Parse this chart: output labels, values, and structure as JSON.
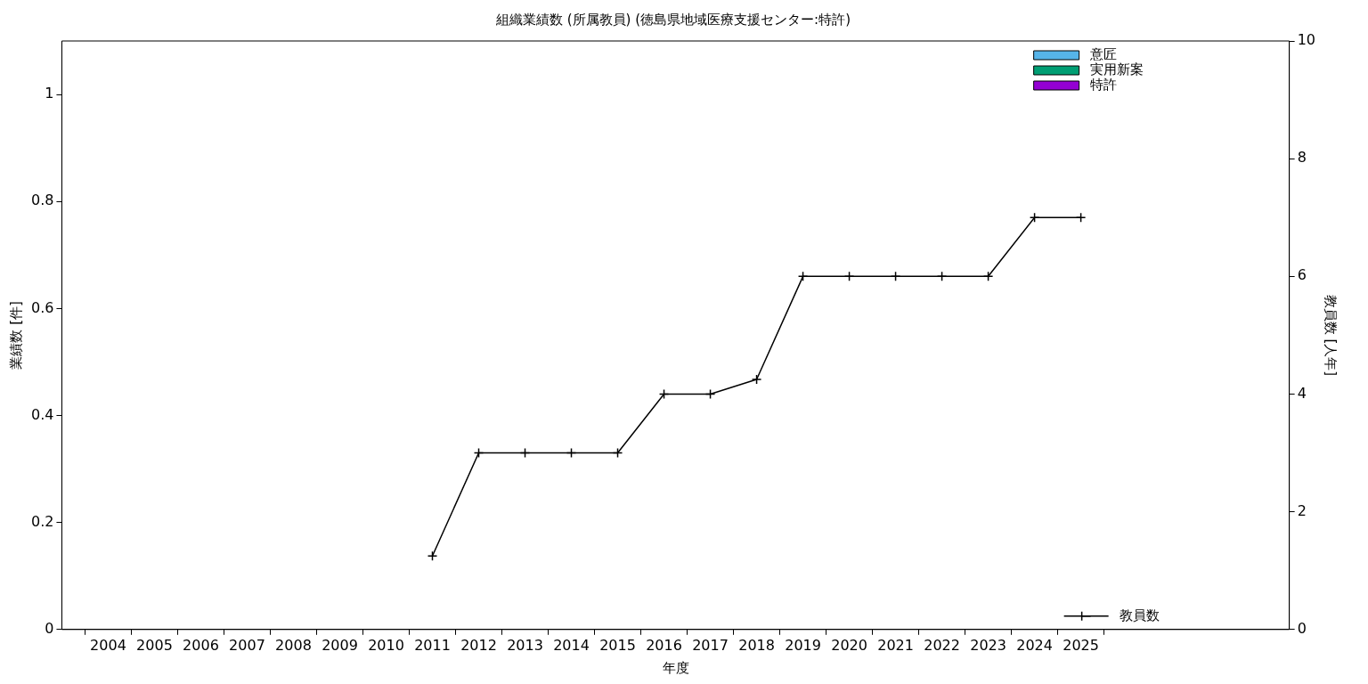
{
  "chart_data": {
    "type": "bar",
    "title": "組織業績数 (所属教員) (徳島県地域医療支援センター:特許)",
    "xlabel": "年度",
    "ylabel": "業績数 [件]",
    "y2label": "教員数 [人年]",
    "x": [
      2004,
      2005,
      2006,
      2007,
      2008,
      2009,
      2010,
      2011,
      2012,
      2013,
      2014,
      2015,
      2016,
      2017,
      2018,
      2019,
      2020,
      2021,
      2022,
      2023,
      2024,
      2025
    ],
    "xlim": [
      2003,
      2029.5
    ],
    "xticks": [
      2004,
      2005,
      2006,
      2007,
      2008,
      2009,
      2010,
      2011,
      2012,
      2013,
      2014,
      2015,
      2016,
      2017,
      2018,
      2019,
      2020,
      2021,
      2022,
      2023,
      2024,
      2025
    ],
    "ylim": [
      0,
      1.1
    ],
    "yticks": [
      0,
      0.2,
      0.4,
      0.6,
      0.8,
      1
    ],
    "y2lim": [
      0,
      10
    ],
    "y2ticks": [
      0,
      2,
      4,
      6,
      8,
      10
    ],
    "grid": false,
    "legend": "top right",
    "marker": "cross",
    "series": [
      {
        "name": "意匠",
        "color": "#56b4e9",
        "values": [
          0,
          0,
          0,
          0,
          0,
          0,
          0,
          0,
          0,
          0,
          0,
          0,
          0,
          0,
          0,
          0,
          0,
          0,
          0,
          0,
          0,
          0
        ]
      },
      {
        "name": "実用新案",
        "color": "#009e73",
        "values": [
          0,
          0,
          0,
          0,
          0,
          0,
          0,
          0,
          0,
          0,
          0,
          0,
          0,
          0,
          0,
          0,
          0,
          0,
          0,
          0,
          0,
          0
        ]
      },
      {
        "name": "特許",
        "color": "#9400d3",
        "values": [
          0,
          0,
          0,
          0,
          0,
          0,
          0,
          0,
          0,
          0,
          0,
          0,
          0,
          0,
          0,
          0,
          0,
          0,
          0,
          0,
          0,
          0
        ]
      },
      {
        "name": "教員数",
        "color": "#000000",
        "type": "line",
        "axis": "y2",
        "values": [
          null,
          null,
          null,
          null,
          null,
          null,
          null,
          1.25,
          3,
          3,
          3,
          3,
          4,
          4,
          4.25,
          6,
          6,
          6,
          6,
          6,
          7,
          7
        ]
      }
    ]
  }
}
